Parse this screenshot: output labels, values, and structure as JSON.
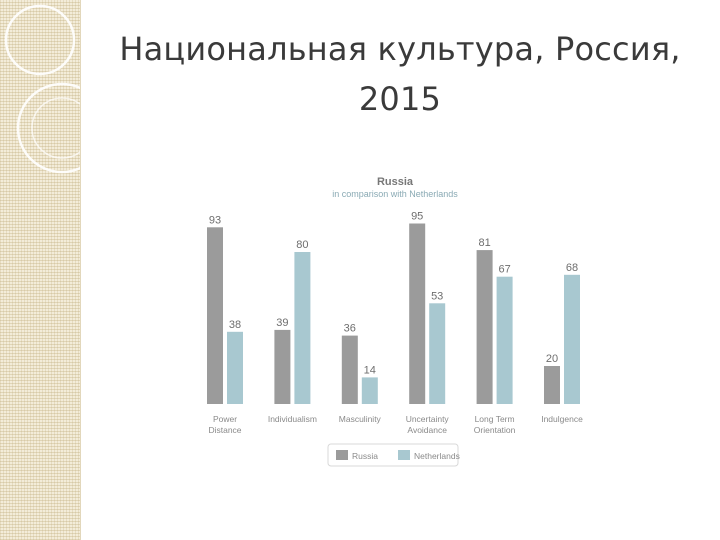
{
  "slide": {
    "title_line1": "Национальная культура, Россия,",
    "title_line2": "2015"
  },
  "chart_data": {
    "type": "bar",
    "title": "Russia",
    "subtitle": "in comparison with Netherlands",
    "categories": [
      [
        "Power",
        "Distance"
      ],
      [
        "Individualism"
      ],
      [
        "Masculinity"
      ],
      [
        "Uncertainty",
        "Avoidance"
      ],
      [
        "Long Term",
        "Orientation"
      ],
      [
        "Indulgence"
      ]
    ],
    "series": [
      {
        "name": "Russia",
        "values": [
          93,
          39,
          36,
          95,
          81,
          20
        ],
        "color": "#9b9b9b"
      },
      {
        "name": "Netherlands",
        "values": [
          38,
          80,
          14,
          53,
          67,
          68
        ],
        "color": "#a8c8d0"
      }
    ],
    "ylim": [
      0,
      100
    ],
    "grid": false,
    "legend_position": "bottom"
  }
}
